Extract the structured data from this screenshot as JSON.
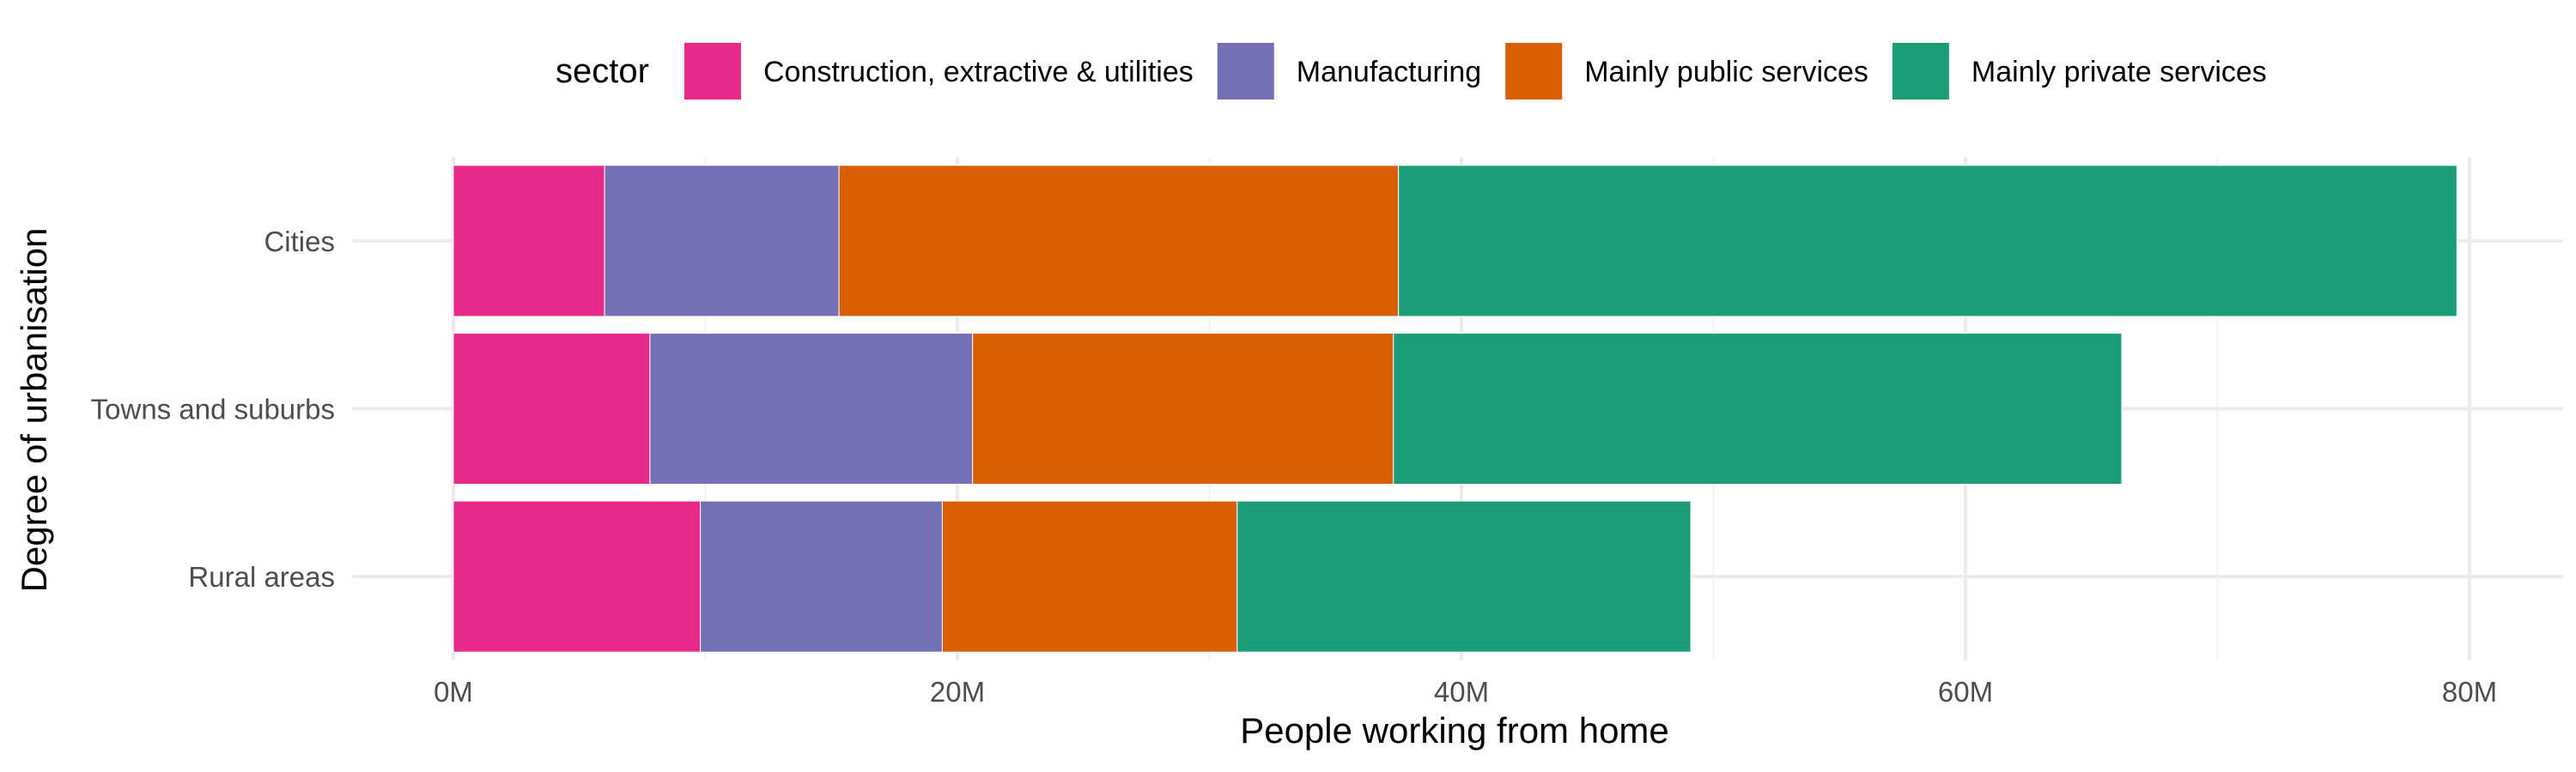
{
  "chart_data": {
    "type": "bar",
    "orientation": "horizontal",
    "stacked": true,
    "title": "",
    "xlabel": "People working from home",
    "ylabel": "Degree of urbanisation",
    "legend": {
      "title": "sector",
      "position": "top"
    },
    "categories": [
      "Cities",
      "Towns and suburbs",
      "Rural areas"
    ],
    "series": [
      {
        "name": "Construction, extractive & utilities",
        "color": "#e7298a",
        "values": [
          6.0,
          7.8,
          9.8
        ]
      },
      {
        "name": "Manufacturing",
        "color": "#7570b3",
        "values": [
          9.3,
          12.8,
          9.6
        ]
      },
      {
        "name": "Mainly public services",
        "color": "#d95f02",
        "values": [
          22.2,
          16.7,
          11.7
        ]
      },
      {
        "name": "Mainly private services",
        "color": "#1b9e77",
        "values": [
          42.0,
          28.9,
          18.0
        ]
      }
    ],
    "xlim": [
      0,
      80
    ],
    "x_ticks": [
      0,
      20,
      40,
      60,
      80
    ],
    "x_tick_labels": [
      "0M",
      "20M",
      "40M",
      "60M",
      "80M"
    ],
    "grid": true
  }
}
